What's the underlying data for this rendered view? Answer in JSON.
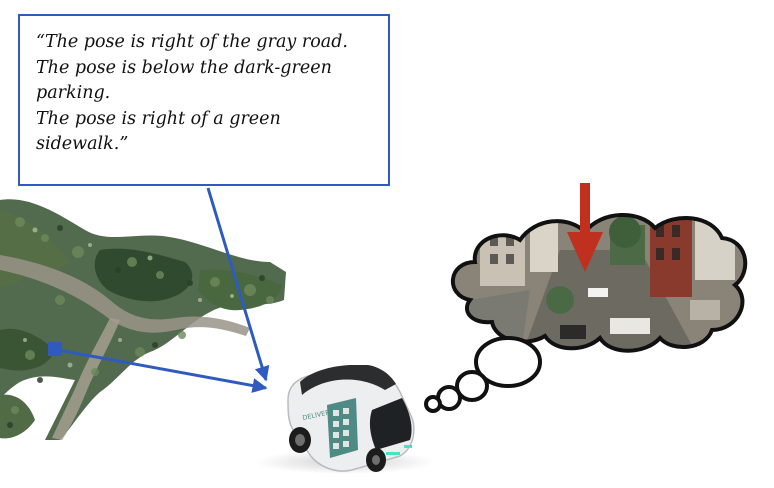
{
  "caption": {
    "lines": [
      "“The pose is right of the gray road.",
      "The pose is below the dark-green",
      "parking.",
      "The pose is right of a green",
      "sidewalk.”"
    ]
  },
  "vehicle": {
    "side_label": "DELIVERY"
  },
  "colors": {
    "arrow_blue": "#2f5bbf",
    "arrow_red": "#c0301e",
    "vehicle_body": "#eceeef",
    "vehicle_panel": "#4f8a84",
    "thought_outline": "#111111"
  },
  "icons": [
    "map-point-cloud",
    "delivery-vehicle-icon",
    "thought-bubble",
    "pose-arrow-icon"
  ]
}
